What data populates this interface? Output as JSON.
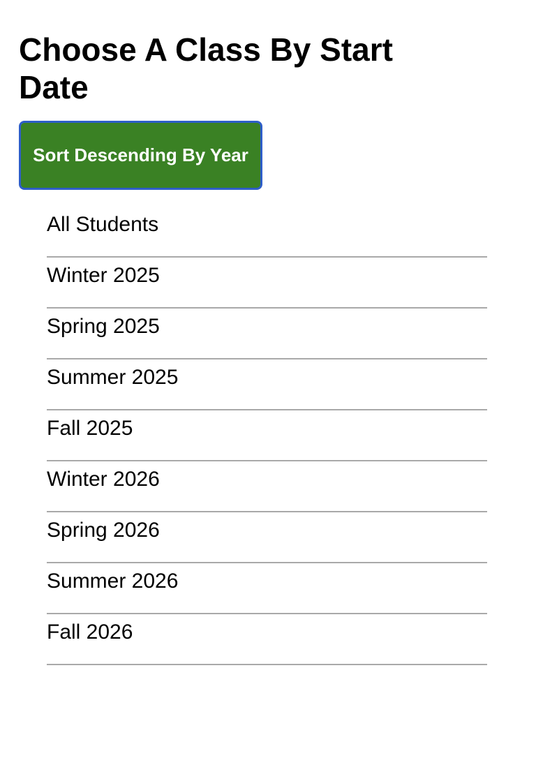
{
  "page": {
    "title": "Choose A Class By Start Date"
  },
  "controls": {
    "sort_button_label": "Sort Descending By Year"
  },
  "classes": {
    "items": [
      {
        "label": "All Students"
      },
      {
        "label": "Winter 2025"
      },
      {
        "label": "Spring 2025"
      },
      {
        "label": "Summer 2025"
      },
      {
        "label": "Fall 2025"
      },
      {
        "label": "Winter 2026"
      },
      {
        "label": "Spring 2026"
      },
      {
        "label": "Summer 2026"
      },
      {
        "label": "Fall 2026"
      }
    ]
  },
  "colors": {
    "button_background": "#3a8124",
    "button_border": "#2e5ec8",
    "button_text": "#ffffff",
    "divider": "#a9a9a9"
  }
}
